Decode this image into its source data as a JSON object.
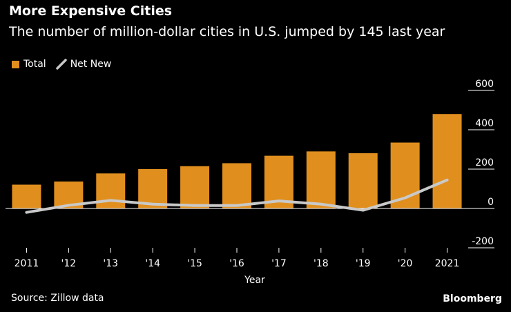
{
  "header": {
    "title": "More Expensive Cities",
    "subtitle": "The number of million-dollar cities in U.S. jumped by 145 last year"
  },
  "legend": {
    "total_label": "Total",
    "net_new_label": "Net New"
  },
  "colors": {
    "bar": "#E08F1F",
    "line": "#C9C9C9",
    "background": "#000000",
    "axis": "#FFFFFF"
  },
  "footer": {
    "source": "Source: Zillow data",
    "brand": "Bloomberg"
  },
  "chart_data": {
    "type": "bar",
    "title": "More Expensive Cities",
    "subtitle": "The number of million-dollar cities in U.S. jumped by 145 last year",
    "xlabel": "Year",
    "ylabel": "",
    "categories": [
      "2011",
      "'12",
      "'13",
      "'14",
      "'15",
      "'16",
      "'17",
      "'18",
      "'19",
      "'20",
      "2021"
    ],
    "series": [
      {
        "name": "Total",
        "type": "bar",
        "values": [
          121,
          137,
          178,
          200,
          215,
          230,
          268,
          290,
          281,
          335,
          480
        ]
      },
      {
        "name": "Net New",
        "type": "line",
        "values": [
          -20,
          16,
          41,
          22,
          15,
          15,
          38,
          22,
          -9,
          54,
          145
        ]
      }
    ],
    "ylim": [
      -200,
      600
    ],
    "yticks": [
      -200,
      0,
      200,
      400,
      600
    ],
    "ytick_labels": [
      "-200",
      "0",
      "200",
      "400",
      "600"
    ],
    "axis_position": "right",
    "legend_position": "top-left",
    "grid": false
  }
}
